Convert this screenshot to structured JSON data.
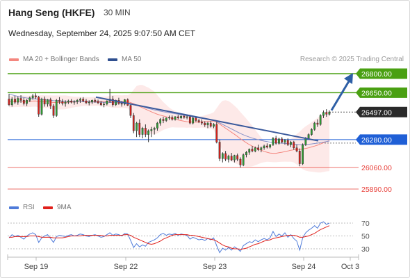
{
  "header": {
    "title": "Hang Seng (HKFE)",
    "timeframe": "30 MIN",
    "datetime": "Wednesday, September 24, 2025 9:07:50 AM CET"
  },
  "legend": {
    "bollinger": {
      "label": "MA 20 + Bollinger Bands",
      "color": "#f4877f"
    },
    "ma50": {
      "label": "MA 50",
      "color": "#2f4f8f"
    },
    "rsi": {
      "label": "RSI",
      "color": "#4f7bd9"
    },
    "rsi_ma": {
      "label": "9MA",
      "color": "#e0201b"
    }
  },
  "credit": "Research © 2025 Trading Central",
  "chart_data": {
    "type": "candlestick",
    "instrument": "Hang Seng (HKFE)",
    "interval": "30 MIN",
    "x_ticks": [
      "Sep 19",
      "Sep 22",
      "Sep 23",
      "Sep 24",
      "Oct 3"
    ],
    "ylim": [
      25850,
      26850
    ],
    "levels": [
      {
        "value": 26800,
        "label": "26800.00",
        "style": "target",
        "color": "#4aa012"
      },
      {
        "value": 26650,
        "label": "26650.00",
        "style": "resistance",
        "color": "#4aa012"
      },
      {
        "value": 26497,
        "label": "26497.00",
        "style": "last",
        "color": "#2a2a2a"
      },
      {
        "value": 26280,
        "label": "26280.00",
        "style": "pivot",
        "color": "#1f5fd6"
      },
      {
        "value": 26060,
        "label": "26060.00",
        "style": "support",
        "color": "#e8403a"
      },
      {
        "value": 25890,
        "label": "25890.00",
        "style": "support",
        "color": "#e8403a"
      }
    ],
    "trendline": {
      "from": 26615,
      "to": 26270
    },
    "arrow": {
      "from": 26500,
      "to": 26800
    },
    "candles": [
      [
        26600,
        26640,
        26545,
        26555
      ],
      [
        26555,
        26615,
        26540,
        26600
      ],
      [
        26600,
        26625,
        26560,
        26575
      ],
      [
        26575,
        26620,
        26555,
        26605
      ],
      [
        26605,
        26630,
        26570,
        26590
      ],
      [
        26590,
        26610,
        26550,
        26565
      ],
      [
        26565,
        26600,
        26545,
        26590
      ],
      [
        26590,
        26620,
        26575,
        26610
      ],
      [
        26610,
        26640,
        26595,
        26625
      ],
      [
        26625,
        26645,
        26600,
        26615
      ],
      [
        26615,
        26625,
        26460,
        26480
      ],
      [
        26480,
        26610,
        26470,
        26600
      ],
      [
        26600,
        26620,
        26540,
        26560
      ],
      [
        26560,
        26600,
        26540,
        26595
      ],
      [
        26595,
        26610,
        26520,
        26545
      ],
      [
        26545,
        26560,
        26450,
        26470
      ],
      [
        26470,
        26600,
        26460,
        26590
      ],
      [
        26590,
        26615,
        26560,
        26580
      ],
      [
        26580,
        26600,
        26550,
        26565
      ],
      [
        26565,
        26590,
        26540,
        26575
      ],
      [
        26575,
        26595,
        26560,
        26585
      ],
      [
        26585,
        26600,
        26565,
        26575
      ],
      [
        26575,
        26590,
        26555,
        26580
      ],
      [
        26580,
        26600,
        26560,
        26590
      ],
      [
        26590,
        26610,
        26570,
        26600
      ],
      [
        26600,
        26615,
        26575,
        26585
      ],
      [
        26585,
        26600,
        26560,
        26570
      ],
      [
        26570,
        26590,
        26550,
        26575
      ],
      [
        26575,
        26595,
        26560,
        26590
      ],
      [
        26590,
        26605,
        26570,
        26580
      ],
      [
        26580,
        26595,
        26560,
        26570
      ],
      [
        26570,
        26585,
        26545,
        26555
      ],
      [
        26555,
        26575,
        26535,
        26560
      ],
      [
        26560,
        26590,
        26550,
        26585
      ],
      [
        26585,
        26680,
        26570,
        26600
      ],
      [
        26600,
        26625,
        26540,
        26555
      ],
      [
        26555,
        26595,
        26545,
        26590
      ],
      [
        26590,
        26610,
        26555,
        26565
      ],
      [
        26565,
        26585,
        26540,
        26560
      ],
      [
        26560,
        26600,
        26550,
        26595
      ],
      [
        26595,
        26605,
        26545,
        26550
      ],
      [
        26550,
        26565,
        26450,
        26470
      ],
      [
        26470,
        26490,
        26330,
        26350
      ],
      [
        26350,
        26420,
        26300,
        26410
      ],
      [
        26410,
        26440,
        26300,
        26320
      ],
      [
        26320,
        26380,
        26290,
        26370
      ],
      [
        26370,
        26400,
        26300,
        26320
      ],
      [
        26320,
        26360,
        26260,
        26350
      ],
      [
        26350,
        26380,
        26300,
        26360
      ],
      [
        26360,
        26380,
        26320,
        26370
      ],
      [
        26370,
        26420,
        26350,
        26410
      ],
      [
        26410,
        26450,
        26390,
        26440
      ],
      [
        26440,
        26460,
        26410,
        26430
      ],
      [
        26430,
        26455,
        26420,
        26450
      ],
      [
        26450,
        26470,
        26435,
        26455
      ],
      [
        26455,
        26470,
        26430,
        26440
      ],
      [
        26440,
        26465,
        26430,
        26460
      ],
      [
        26460,
        26475,
        26440,
        26450
      ],
      [
        26450,
        26470,
        26440,
        26465
      ],
      [
        26465,
        26475,
        26445,
        26455
      ],
      [
        26455,
        26470,
        26440,
        26460
      ],
      [
        26460,
        26475,
        26400,
        26410
      ],
      [
        26410,
        26460,
        26400,
        26450
      ],
      [
        26450,
        26460,
        26420,
        26430
      ],
      [
        26430,
        26445,
        26410,
        26420
      ],
      [
        26420,
        26440,
        26395,
        26410
      ],
      [
        26410,
        26425,
        26380,
        26395
      ],
      [
        26395,
        26420,
        26370,
        26410
      ],
      [
        26410,
        26425,
        26375,
        26385
      ],
      [
        26385,
        26410,
        26370,
        26400
      ],
      [
        26400,
        26420,
        26250,
        26260
      ],
      [
        26260,
        26280,
        26110,
        26130
      ],
      [
        26130,
        26180,
        26100,
        26170
      ],
      [
        26170,
        26190,
        26110,
        26125
      ],
      [
        26125,
        26160,
        26100,
        26150
      ],
      [
        26150,
        26175,
        26110,
        26120
      ],
      [
        26120,
        26160,
        26100,
        26155
      ],
      [
        26155,
        26170,
        26110,
        26125
      ],
      [
        26125,
        26140,
        26060,
        26080
      ],
      [
        26080,
        26170,
        26070,
        26160
      ],
      [
        26160,
        26190,
        26140,
        26180
      ],
      [
        26180,
        26210,
        26160,
        26205
      ],
      [
        26205,
        26230,
        26180,
        26190
      ],
      [
        26190,
        26225,
        26180,
        26215
      ],
      [
        26215,
        26240,
        26190,
        26200
      ],
      [
        26200,
        26225,
        26180,
        26215
      ],
      [
        26215,
        26240,
        26200,
        26230
      ],
      [
        26230,
        26250,
        26210,
        26220
      ],
      [
        26220,
        26245,
        26210,
        26240
      ],
      [
        26240,
        26300,
        26230,
        26290
      ],
      [
        26290,
        26310,
        26240,
        26250
      ],
      [
        26250,
        26295,
        26240,
        26285
      ],
      [
        26285,
        26300,
        26250,
        26260
      ],
      [
        26260,
        26285,
        26240,
        26275
      ],
      [
        26275,
        26290,
        26230,
        26240
      ],
      [
        26240,
        26270,
        26220,
        26260
      ],
      [
        26260,
        26270,
        26200,
        26215
      ],
      [
        26215,
        26240,
        26180,
        26190
      ],
      [
        26190,
        26210,
        26070,
        26090
      ],
      [
        26090,
        26250,
        26080,
        26240
      ],
      [
        26240,
        26300,
        26230,
        26290
      ],
      [
        26290,
        26330,
        26280,
        26320
      ],
      [
        26320,
        26370,
        26310,
        26360
      ],
      [
        26360,
        26420,
        26350,
        26410
      ],
      [
        26410,
        26440,
        26380,
        26400
      ],
      [
        26400,
        26480,
        26390,
        26470
      ],
      [
        26470,
        26510,
        26450,
        26495
      ],
      [
        26495,
        26520,
        26460,
        26480
      ],
      [
        26480,
        26510,
        26470,
        26497
      ]
    ],
    "ma20": [
      26580,
      26580,
      26581,
      26582,
      26583,
      26582,
      26581,
      26582,
      26584,
      26585,
      26580,
      26580,
      26579,
      26579,
      26577,
      26572,
      26573,
      26573,
      26573,
      26574,
      26575,
      26576,
      26577,
      26578,
      26579,
      26580,
      26580,
      26580,
      26581,
      26582,
      26582,
      26581,
      26580,
      26580,
      26581,
      26580,
      26580,
      26580,
      26579,
      26580,
      26578,
      26572,
      26563,
      26553,
      26541,
      26531,
      26520,
      26510,
      26499,
      26489,
      26480,
      26473,
      26466,
      26460,
      26453,
      26447,
      26441,
      26435,
      26430,
      26425,
      26421,
      26420,
      26418,
      26418,
      26418,
      26420,
      26422,
      26424,
      26425,
      26426,
      26418,
      26402,
      26386,
      26370,
      26354,
      26338,
      26322,
      26305,
      26287,
      26271,
      26255,
      26241,
      26229,
      26218,
      26207,
      26196,
      26187,
      26180,
      26174,
      26172,
      26172,
      26176,
      26180,
      26186,
      26190,
      26196,
      26200,
      26203,
      26203,
      26206,
      26210,
      26215,
      26222,
      26229,
      26236,
      26245,
      26255,
      26264,
      26272
    ],
    "ma50": [
      26640,
      26633,
      26627,
      26621,
      26616,
      26612,
      26608,
      26605,
      26603,
      26601,
      26598,
      26596,
      26594,
      26592,
      26590,
      26587,
      26586,
      26585,
      26584,
      26583,
      26582,
      26582,
      26581,
      26580,
      26580,
      26579,
      26578,
      26578,
      26577,
      26577,
      26576,
      26575,
      26574,
      26574,
      26573,
      26572,
      26571,
      26570,
      26569,
      26568,
      26566,
      26563,
      26558,
      26552,
      26545,
      26539,
      26533,
      26526,
      26520,
      26514,
      26509,
      26504,
      26500,
      26496,
      26492,
      26488,
      26484,
      26480,
      26476,
      26472,
      26468,
      26464,
      26460,
      26456,
      26452,
      26448,
      26444,
      26440,
      26436,
      26432,
      26424,
      26412,
      26400,
      26388,
      26376,
      26364,
      26352,
      26340,
      26328,
      26318,
      26308,
      26300,
      26292,
      26285,
      26279,
      26273,
      26268,
      26264,
      26260,
      26258,
      26255,
      26253,
      26251,
      26250,
      26248,
      26246,
      26244,
      26242,
      26240,
      26240,
      26241,
      26243,
      26246,
      26249,
      26252,
      26256,
      26260,
      26264,
      26268
    ],
    "band_width": [
      45,
      45,
      45,
      45,
      45,
      45,
      45,
      45,
      45,
      45,
      48,
      50,
      50,
      50,
      52,
      55,
      55,
      55,
      55,
      55,
      50,
      45,
      42,
      40,
      38,
      35,
      35,
      35,
      35,
      35,
      35,
      38,
      40,
      40,
      45,
      50,
      50,
      50,
      50,
      50,
      52,
      70,
      110,
      150,
      170,
      180,
      180,
      180,
      175,
      170,
      150,
      130,
      110,
      95,
      80,
      70,
      65,
      60,
      55,
      50,
      48,
      45,
      45,
      45,
      45,
      45,
      50,
      55,
      60,
      70,
      110,
      160,
      200,
      220,
      230,
      230,
      225,
      220,
      210,
      200,
      190,
      175,
      160,
      140,
      120,
      100,
      85,
      75,
      70,
      70,
      70,
      72,
      75,
      80,
      85,
      90,
      100,
      120,
      140,
      160,
      175,
      185,
      195,
      205,
      215,
      225,
      230,
      235,
      240
    ],
    "rsi": {
      "ticks": [
        70,
        50,
        30
      ],
      "ylim": [
        15,
        75
      ],
      "rsi_values": [
        47,
        52,
        49,
        51,
        48,
        45,
        50,
        53,
        55,
        52,
        40,
        47,
        50,
        52,
        46,
        40,
        49,
        51,
        50,
        49,
        51,
        52,
        50,
        51,
        53,
        52,
        50,
        49,
        51,
        52,
        50,
        48,
        49,
        52,
        55,
        51,
        53,
        52,
        50,
        54,
        53,
        43,
        32,
        38,
        33,
        36,
        34,
        40,
        42,
        44,
        47,
        52,
        54,
        51,
        53,
        52,
        54,
        51,
        53,
        52,
        51,
        45,
        48,
        46,
        44,
        45,
        43,
        46,
        44,
        47,
        35,
        24,
        31,
        28,
        32,
        28,
        33,
        30,
        26,
        35,
        38,
        41,
        40,
        44,
        41,
        44,
        46,
        44,
        47,
        57,
        49,
        53,
        50,
        55,
        48,
        52,
        46,
        42,
        28,
        47,
        55,
        59,
        62,
        66,
        62,
        70,
        72,
        68,
        70
      ],
      "ma9_values": [
        48,
        48,
        49,
        49,
        49,
        49,
        49,
        50,
        50,
        50,
        49,
        48,
        48,
        48,
        48,
        47,
        47,
        47,
        47,
        48,
        49,
        50,
        50,
        50,
        50,
        51,
        51,
        51,
        51,
        51,
        51,
        51,
        50,
        50,
        51,
        51,
        51,
        51,
        51,
        52,
        52,
        51,
        48,
        46,
        44,
        42,
        40,
        38,
        37,
        38,
        40,
        42,
        45,
        47,
        49,
        51,
        52,
        52,
        52,
        52,
        52,
        51,
        51,
        50,
        49,
        48,
        47,
        46,
        45,
        44,
        42,
        39,
        36,
        34,
        33,
        31,
        30,
        30,
        29,
        30,
        31,
        33,
        35,
        37,
        38,
        40,
        42,
        43,
        44,
        46,
        47,
        48,
        49,
        50,
        51,
        51,
        51,
        50,
        48,
        48,
        49,
        50,
        52,
        54,
        57,
        60,
        62,
        64,
        66
      ]
    }
  }
}
